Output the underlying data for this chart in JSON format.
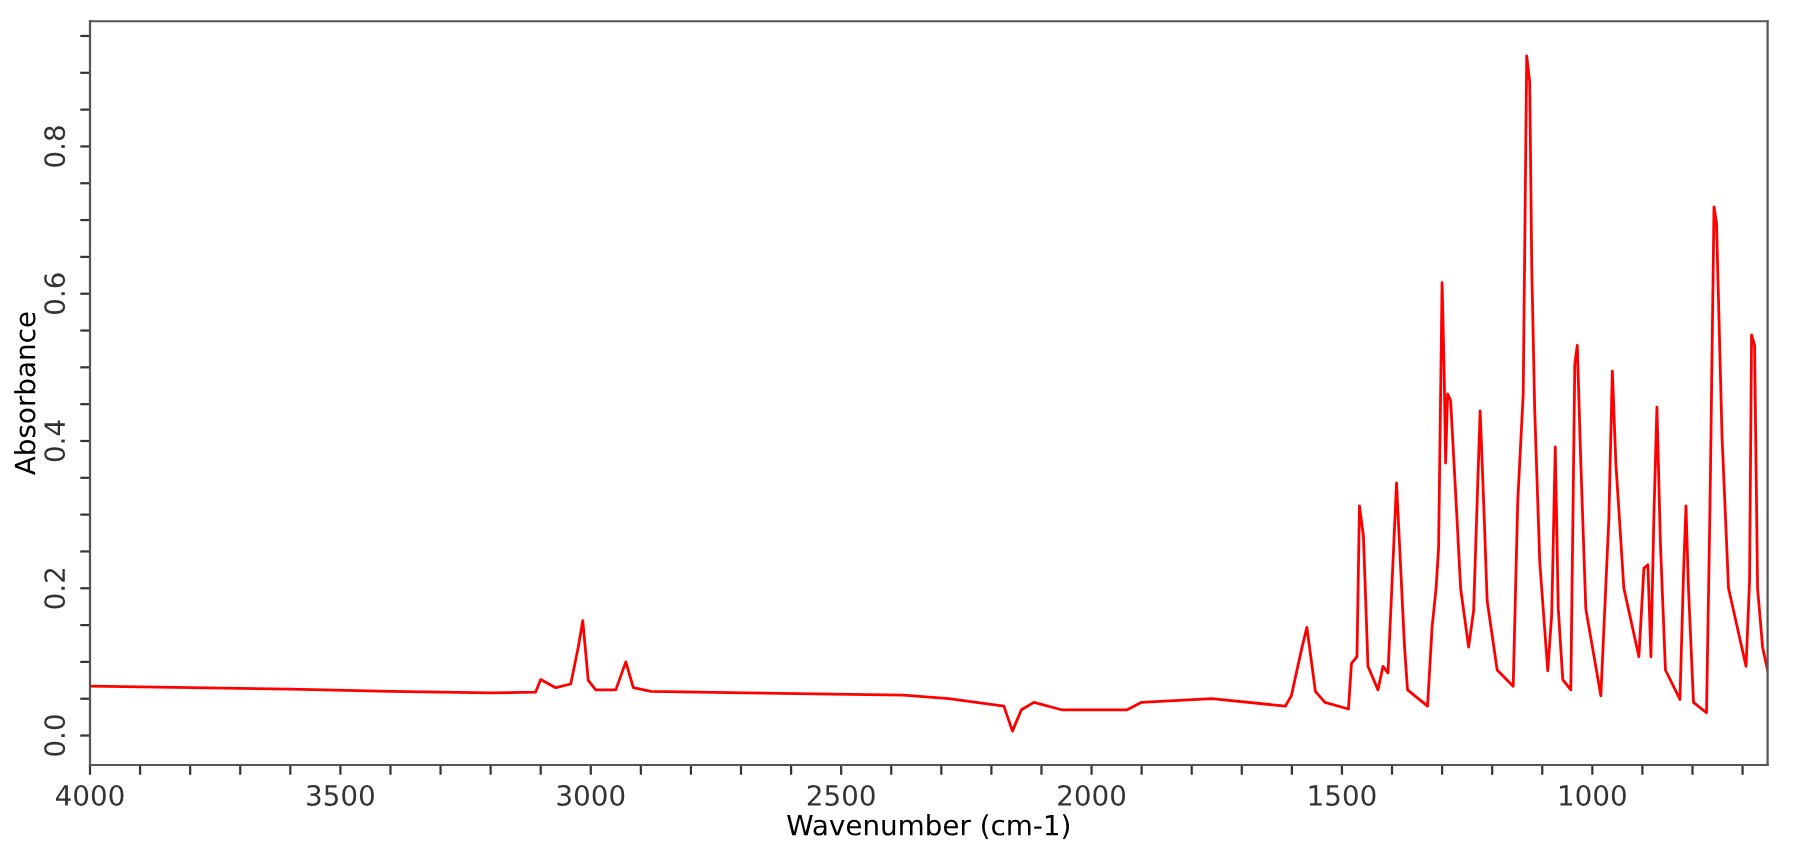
{
  "chart_data": {
    "type": "line",
    "xlabel": "Wavenumber (cm-1)",
    "ylabel": "Absorbance",
    "grid": false,
    "marker": "none",
    "line_style": "solid",
    "xlim": [
      4000,
      650
    ],
    "ylim": [
      -0.04,
      0.97
    ],
    "xticks": [
      {
        "value": 4000,
        "label": "4000"
      },
      {
        "value": 3900,
        "label": null
      },
      {
        "value": 3800,
        "label": null
      },
      {
        "value": 3700,
        "label": null
      },
      {
        "value": 3600,
        "label": null
      },
      {
        "value": 3500,
        "label": "3500"
      },
      {
        "value": 3400,
        "label": null
      },
      {
        "value": 3300,
        "label": null
      },
      {
        "value": 3200,
        "label": null
      },
      {
        "value": 3100,
        "label": null
      },
      {
        "value": 3000,
        "label": "3000"
      },
      {
        "value": 2900,
        "label": null
      },
      {
        "value": 2800,
        "label": null
      },
      {
        "value": 2700,
        "label": null
      },
      {
        "value": 2600,
        "label": null
      },
      {
        "value": 2500,
        "label": "2500"
      },
      {
        "value": 2400,
        "label": null
      },
      {
        "value": 2300,
        "label": null
      },
      {
        "value": 2200,
        "label": null
      },
      {
        "value": 2100,
        "label": null
      },
      {
        "value": 2000,
        "label": "2000"
      },
      {
        "value": 1900,
        "label": null
      },
      {
        "value": 1800,
        "label": null
      },
      {
        "value": 1700,
        "label": null
      },
      {
        "value": 1600,
        "label": null
      },
      {
        "value": 1500,
        "label": "1500"
      },
      {
        "value": 1400,
        "label": null
      },
      {
        "value": 1300,
        "label": null
      },
      {
        "value": 1200,
        "label": null
      },
      {
        "value": 1100,
        "label": null
      },
      {
        "value": 1000,
        "label": "1000"
      },
      {
        "value": 900,
        "label": null
      },
      {
        "value": 800,
        "label": null
      },
      {
        "value": 700,
        "label": null
      }
    ],
    "yticks": [
      {
        "value": 0.0,
        "label": "0.0"
      },
      {
        "value": 0.05,
        "label": null
      },
      {
        "value": 0.1,
        "label": null
      },
      {
        "value": 0.15,
        "label": null
      },
      {
        "value": 0.2,
        "label": "0.2"
      },
      {
        "value": 0.25,
        "label": null
      },
      {
        "value": 0.3,
        "label": null
      },
      {
        "value": 0.35,
        "label": null
      },
      {
        "value": 0.4,
        "label": "0.4"
      },
      {
        "value": 0.45,
        "label": null
      },
      {
        "value": 0.5,
        "label": null
      },
      {
        "value": 0.55,
        "label": null
      },
      {
        "value": 0.6,
        "label": "0.6"
      },
      {
        "value": 0.65,
        "label": null
      },
      {
        "value": 0.7,
        "label": null
      },
      {
        "value": 0.75,
        "label": null
      },
      {
        "value": 0.8,
        "label": "0.8"
      },
      {
        "value": 0.85,
        "label": null
      },
      {
        "value": 0.9,
        "label": null
      },
      {
        "value": 0.95,
        "label": null
      }
    ],
    "series": [
      {
        "color": "#ff0000",
        "x": [
          4000,
          3800,
          3600,
          3400,
          3200,
          3110,
          3100,
          3070,
          3040,
          3025,
          3016,
          3005,
          2990,
          2950,
          2930,
          2915,
          2880,
          2692,
          2376,
          2285,
          2175,
          2158,
          2140,
          2115,
          2060,
          1929,
          1901,
          1760,
          1613,
          1601,
          1581,
          1570,
          1553,
          1534,
          1487,
          1481,
          1470,
          1465,
          1457,
          1448,
          1428,
          1418,
          1408,
          1391,
          1375,
          1369,
          1329,
          1320,
          1312,
          1307,
          1300,
          1296,
          1293,
          1289,
          1283,
          1272,
          1263,
          1247,
          1237,
          1230,
          1224,
          1217,
          1210,
          1190,
          1158,
          1149,
          1138,
          1131,
          1125,
          1121,
          1115,
          1105,
          1089,
          1081,
          1074,
          1068,
          1059,
          1043,
          1035,
          1030,
          1023,
          1013,
          983,
          967,
          960,
          953,
          937,
          907,
          897,
          889,
          883,
          877,
          871,
          864,
          854,
          825,
          818,
          813,
          808,
          798,
          772,
          765,
          757,
          752,
          741,
          728,
          693,
          686,
          682,
          676,
          670,
          660,
          650
        ],
        "values": [
          0.067,
          0.065,
          0.063,
          0.06,
          0.058,
          0.059,
          0.076,
          0.065,
          0.07,
          0.12,
          0.156,
          0.075,
          0.062,
          0.062,
          0.1,
          0.065,
          0.06,
          0.058,
          0.055,
          0.05,
          0.04,
          0.006,
          0.035,
          0.045,
          0.035,
          0.035,
          0.045,
          0.05,
          0.04,
          0.054,
          0.116,
          0.147,
          0.06,
          0.045,
          0.036,
          0.098,
          0.107,
          0.312,
          0.27,
          0.094,
          0.062,
          0.094,
          0.085,
          0.343,
          0.12,
          0.062,
          0.04,
          0.147,
          0.2,
          0.254,
          0.615,
          0.5,
          0.37,
          0.464,
          0.455,
          0.317,
          0.2,
          0.12,
          0.17,
          0.317,
          0.441,
          0.317,
          0.183,
          0.089,
          0.067,
          0.317,
          0.464,
          0.923,
          0.887,
          0.638,
          0.441,
          0.236,
          0.088,
          0.165,
          0.392,
          0.172,
          0.076,
          0.062,
          0.504,
          0.53,
          0.37,
          0.172,
          0.054,
          0.294,
          0.495,
          0.37,
          0.2,
          0.107,
          0.227,
          0.232,
          0.107,
          0.299,
          0.446,
          0.26,
          0.089,
          0.049,
          0.218,
          0.312,
          0.2,
          0.045,
          0.031,
          0.312,
          0.718,
          0.696,
          0.406,
          0.2,
          0.094,
          0.21,
          0.544,
          0.53,
          0.2,
          0.12,
          0.089
        ]
      }
    ]
  }
}
